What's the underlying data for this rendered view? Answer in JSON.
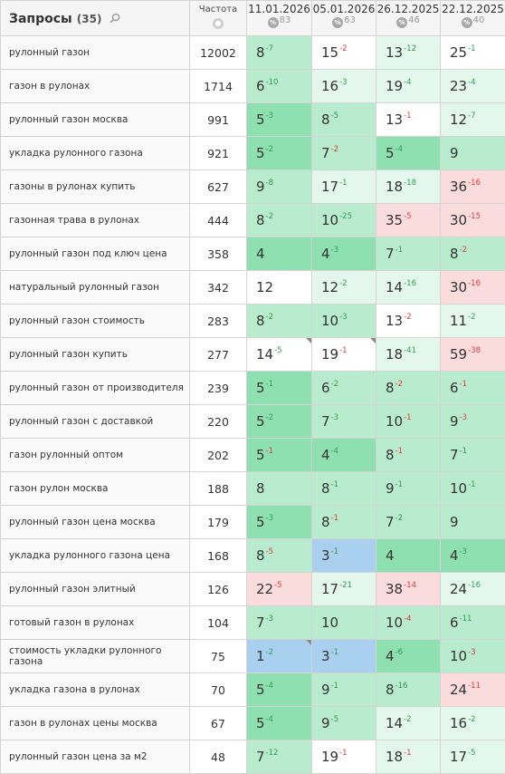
{
  "header": {
    "title": "Запросы",
    "count": "(35)",
    "freq_label": "Частота",
    "pct_icon": "%",
    "dates": [
      {
        "date": "11.01.2026",
        "visibility": "83"
      },
      {
        "date": "05.01.2026",
        "visibility": "63"
      },
      {
        "date": "26.12.2025",
        "visibility": "46"
      },
      {
        "date": "22.12.2025",
        "visibility": "40"
      }
    ]
  },
  "colors": {
    "top1": "#a9d1ef",
    "top5": "#8fe0b1",
    "top10": "#b9ecce",
    "top20": "#e3f7ec",
    "top30_white": "#ffffff",
    "outside": "#fbdcdc",
    "delta_up": "#2e9e4f",
    "delta_down": "#e23b3b"
  },
  "rows": [
    {
      "query": "рулонный газон",
      "freq": "12002",
      "cells": [
        {
          "pos": "8",
          "delta": "-7",
          "dir": "up",
          "bg": "top10",
          "corner": false
        },
        {
          "pos": "15",
          "delta": "-2",
          "dir": "down",
          "bg": "top30_white",
          "corner": false
        },
        {
          "pos": "13",
          "delta": "-12",
          "dir": "up",
          "bg": "top20",
          "corner": false
        },
        {
          "pos": "25",
          "delta": "-1",
          "dir": "up",
          "bg": "top30_white",
          "corner": false
        }
      ]
    },
    {
      "query": "газон в рулонах",
      "freq": "1714",
      "cells": [
        {
          "pos": "6",
          "delta": "-10",
          "dir": "up",
          "bg": "top10",
          "corner": false
        },
        {
          "pos": "16",
          "delta": "-3",
          "dir": "up",
          "bg": "top20",
          "corner": false
        },
        {
          "pos": "19",
          "delta": "-4",
          "dir": "up",
          "bg": "top20",
          "corner": false
        },
        {
          "pos": "23",
          "delta": "-4",
          "dir": "up",
          "bg": "top20",
          "corner": false
        }
      ]
    },
    {
      "query": "рулонный газон москва",
      "freq": "991",
      "cells": [
        {
          "pos": "5",
          "delta": "-3",
          "dir": "up",
          "bg": "top5",
          "corner": false
        },
        {
          "pos": "8",
          "delta": "-5",
          "dir": "up",
          "bg": "top10",
          "corner": false
        },
        {
          "pos": "13",
          "delta": "-1",
          "dir": "down",
          "bg": "top30_white",
          "corner": false
        },
        {
          "pos": "12",
          "delta": "-7",
          "dir": "up",
          "bg": "top20",
          "corner": false
        }
      ]
    },
    {
      "query": "укладка рулонного газона",
      "freq": "921",
      "cells": [
        {
          "pos": "5",
          "delta": "-2",
          "dir": "up",
          "bg": "top5",
          "corner": false
        },
        {
          "pos": "7",
          "delta": "-2",
          "dir": "down",
          "bg": "top10",
          "corner": false
        },
        {
          "pos": "5",
          "delta": "-4",
          "dir": "up",
          "bg": "top5",
          "corner": false
        },
        {
          "pos": "9",
          "delta": "",
          "dir": "none",
          "bg": "top10",
          "corner": false
        }
      ]
    },
    {
      "query": "газоны в рулонах купить",
      "freq": "627",
      "cells": [
        {
          "pos": "9",
          "delta": "-8",
          "dir": "up",
          "bg": "top10",
          "corner": false
        },
        {
          "pos": "17",
          "delta": "-1",
          "dir": "up",
          "bg": "top20",
          "corner": false
        },
        {
          "pos": "18",
          "delta": "-18",
          "dir": "up",
          "bg": "top20",
          "corner": false
        },
        {
          "pos": "36",
          "delta": "-16",
          "dir": "down",
          "bg": "outside",
          "corner": false
        }
      ]
    },
    {
      "query": "газонная трава в рулонах",
      "freq": "444",
      "cells": [
        {
          "pos": "8",
          "delta": "-2",
          "dir": "up",
          "bg": "top10",
          "corner": false
        },
        {
          "pos": "10",
          "delta": "-25",
          "dir": "up",
          "bg": "top10",
          "corner": false
        },
        {
          "pos": "35",
          "delta": "-5",
          "dir": "down",
          "bg": "outside",
          "corner": false
        },
        {
          "pos": "30",
          "delta": "-15",
          "dir": "down",
          "bg": "outside",
          "corner": false
        }
      ]
    },
    {
      "query": "рулонный газон под ключ цена",
      "freq": "358",
      "cells": [
        {
          "pos": "4",
          "delta": "",
          "dir": "none",
          "bg": "top5",
          "corner": false
        },
        {
          "pos": "4",
          "delta": "-3",
          "dir": "up",
          "bg": "top5",
          "corner": false
        },
        {
          "pos": "7",
          "delta": "-1",
          "dir": "up",
          "bg": "top10",
          "corner": false
        },
        {
          "pos": "8",
          "delta": "-2",
          "dir": "down",
          "bg": "top10",
          "corner": false
        }
      ]
    },
    {
      "query": "натуральный рулонный газон",
      "freq": "342",
      "cells": [
        {
          "pos": "12",
          "delta": "",
          "dir": "none",
          "bg": "top30_white",
          "corner": false
        },
        {
          "pos": "12",
          "delta": "-2",
          "dir": "up",
          "bg": "top20",
          "corner": false
        },
        {
          "pos": "14",
          "delta": "-16",
          "dir": "up",
          "bg": "top20",
          "corner": false
        },
        {
          "pos": "30",
          "delta": "-16",
          "dir": "down",
          "bg": "outside",
          "corner": false
        }
      ]
    },
    {
      "query": "рулонный газон стоимость",
      "freq": "283",
      "cells": [
        {
          "pos": "8",
          "delta": "-2",
          "dir": "up",
          "bg": "top10",
          "corner": false
        },
        {
          "pos": "10",
          "delta": "-3",
          "dir": "up",
          "bg": "top10",
          "corner": false
        },
        {
          "pos": "13",
          "delta": "-2",
          "dir": "down",
          "bg": "top30_white",
          "corner": false
        },
        {
          "pos": "11",
          "delta": "-2",
          "dir": "up",
          "bg": "top20",
          "corner": false
        }
      ]
    },
    {
      "query": "рулонный газон купить",
      "freq": "277",
      "cells": [
        {
          "pos": "14",
          "delta": "-5",
          "dir": "up",
          "bg": "top30_white",
          "corner": true
        },
        {
          "pos": "19",
          "delta": "-1",
          "dir": "down",
          "bg": "top30_white",
          "corner": true
        },
        {
          "pos": "18",
          "delta": "-41",
          "dir": "up",
          "bg": "top20",
          "corner": false
        },
        {
          "pos": "59",
          "delta": "-38",
          "dir": "down",
          "bg": "outside",
          "corner": false
        }
      ]
    },
    {
      "query": "рулонный газон от производителя",
      "freq": "239",
      "cells": [
        {
          "pos": "5",
          "delta": "-1",
          "dir": "up",
          "bg": "top5",
          "corner": false
        },
        {
          "pos": "6",
          "delta": "-2",
          "dir": "up",
          "bg": "top10",
          "corner": false
        },
        {
          "pos": "8",
          "delta": "-2",
          "dir": "down",
          "bg": "top10",
          "corner": false
        },
        {
          "pos": "6",
          "delta": "-1",
          "dir": "down",
          "bg": "top10",
          "corner": false
        }
      ]
    },
    {
      "query": "рулонный газон с доставкой",
      "freq": "220",
      "cells": [
        {
          "pos": "5",
          "delta": "-2",
          "dir": "up",
          "bg": "top5",
          "corner": false
        },
        {
          "pos": "7",
          "delta": "-3",
          "dir": "up",
          "bg": "top10",
          "corner": false
        },
        {
          "pos": "10",
          "delta": "-1",
          "dir": "down",
          "bg": "top10",
          "corner": false
        },
        {
          "pos": "9",
          "delta": "-3",
          "dir": "down",
          "bg": "top10",
          "corner": false
        }
      ]
    },
    {
      "query": "газон рулонный оптом",
      "freq": "202",
      "cells": [
        {
          "pos": "5",
          "delta": "-1",
          "dir": "down",
          "bg": "top5",
          "corner": false
        },
        {
          "pos": "4",
          "delta": "-4",
          "dir": "up",
          "bg": "top5",
          "corner": false
        },
        {
          "pos": "8",
          "delta": "-1",
          "dir": "down",
          "bg": "top10",
          "corner": false
        },
        {
          "pos": "7",
          "delta": "-1",
          "dir": "up",
          "bg": "top10",
          "corner": false
        }
      ]
    },
    {
      "query": "газон рулон москва",
      "freq": "188",
      "cells": [
        {
          "pos": "8",
          "delta": "",
          "dir": "none",
          "bg": "top10",
          "corner": false
        },
        {
          "pos": "8",
          "delta": "-1",
          "dir": "up",
          "bg": "top10",
          "corner": false
        },
        {
          "pos": "9",
          "delta": "-1",
          "dir": "up",
          "bg": "top10",
          "corner": false
        },
        {
          "pos": "10",
          "delta": "-1",
          "dir": "up",
          "bg": "top10",
          "corner": false
        }
      ]
    },
    {
      "query": "рулонный газон цена москва",
      "freq": "179",
      "cells": [
        {
          "pos": "5",
          "delta": "-3",
          "dir": "up",
          "bg": "top5",
          "corner": false
        },
        {
          "pos": "8",
          "delta": "-1",
          "dir": "down",
          "bg": "top10",
          "corner": false
        },
        {
          "pos": "7",
          "delta": "-2",
          "dir": "up",
          "bg": "top10",
          "corner": false
        },
        {
          "pos": "9",
          "delta": "",
          "dir": "none",
          "bg": "top10",
          "corner": false
        }
      ]
    },
    {
      "query": "укладка рулонного газона цена",
      "freq": "168",
      "cells": [
        {
          "pos": "8",
          "delta": "-5",
          "dir": "down",
          "bg": "top10",
          "corner": false
        },
        {
          "pos": "3",
          "delta": "-1",
          "dir": "up",
          "bg": "top1",
          "corner": false
        },
        {
          "pos": "4",
          "delta": "",
          "dir": "none",
          "bg": "top5",
          "corner": false
        },
        {
          "pos": "4",
          "delta": "-3",
          "dir": "up",
          "bg": "top5",
          "corner": false
        }
      ]
    },
    {
      "query": "рулонный газон элитный",
      "freq": "126",
      "cells": [
        {
          "pos": "22",
          "delta": "-5",
          "dir": "down",
          "bg": "outside",
          "corner": false
        },
        {
          "pos": "17",
          "delta": "-21",
          "dir": "up",
          "bg": "top20",
          "corner": false
        },
        {
          "pos": "38",
          "delta": "-14",
          "dir": "down",
          "bg": "outside",
          "corner": false
        },
        {
          "pos": "24",
          "delta": "-16",
          "dir": "up",
          "bg": "top20",
          "corner": false
        }
      ]
    },
    {
      "query": "готовый газон в рулонах",
      "freq": "104",
      "cells": [
        {
          "pos": "7",
          "delta": "-3",
          "dir": "up",
          "bg": "top10",
          "corner": false
        },
        {
          "pos": "10",
          "delta": "",
          "dir": "none",
          "bg": "top10",
          "corner": false
        },
        {
          "pos": "10",
          "delta": "-4",
          "dir": "down",
          "bg": "top10",
          "corner": false
        },
        {
          "pos": "6",
          "delta": "-11",
          "dir": "up",
          "bg": "top10",
          "corner": false
        }
      ]
    },
    {
      "query": "стоимость укладки рулонного газона",
      "freq": "75",
      "cells": [
        {
          "pos": "1",
          "delta": "-2",
          "dir": "up",
          "bg": "top1",
          "corner": true
        },
        {
          "pos": "3",
          "delta": "-1",
          "dir": "up",
          "bg": "top1",
          "corner": false
        },
        {
          "pos": "4",
          "delta": "-6",
          "dir": "up",
          "bg": "top5",
          "corner": false
        },
        {
          "pos": "10",
          "delta": "-3",
          "dir": "down",
          "bg": "top10",
          "corner": false
        }
      ]
    },
    {
      "query": "укладка газона в рулонах",
      "freq": "70",
      "cells": [
        {
          "pos": "5",
          "delta": "-4",
          "dir": "up",
          "bg": "top5",
          "corner": false
        },
        {
          "pos": "9",
          "delta": "-1",
          "dir": "up",
          "bg": "top10",
          "corner": false
        },
        {
          "pos": "8",
          "delta": "-16",
          "dir": "up",
          "bg": "top10",
          "corner": false
        },
        {
          "pos": "24",
          "delta": "-11",
          "dir": "down",
          "bg": "outside",
          "corner": false
        }
      ]
    },
    {
      "query": "газон в рулонах цены москва",
      "freq": "67",
      "cells": [
        {
          "pos": "5",
          "delta": "-4",
          "dir": "up",
          "bg": "top5",
          "corner": false
        },
        {
          "pos": "9",
          "delta": "-5",
          "dir": "up",
          "bg": "top10",
          "corner": false
        },
        {
          "pos": "14",
          "delta": "-2",
          "dir": "up",
          "bg": "top20",
          "corner": false
        },
        {
          "pos": "16",
          "delta": "-2",
          "dir": "up",
          "bg": "top20",
          "corner": false
        }
      ]
    },
    {
      "query": "рулонный газон цена за м2",
      "freq": "48",
      "cells": [
        {
          "pos": "7",
          "delta": "-12",
          "dir": "up",
          "bg": "top10",
          "corner": false
        },
        {
          "pos": "19",
          "delta": "-1",
          "dir": "down",
          "bg": "top30_white",
          "corner": false
        },
        {
          "pos": "18",
          "delta": "-1",
          "dir": "down",
          "bg": "top20",
          "corner": false
        },
        {
          "pos": "17",
          "delta": "-5",
          "dir": "up",
          "bg": "top20",
          "corner": false
        }
      ]
    }
  ]
}
